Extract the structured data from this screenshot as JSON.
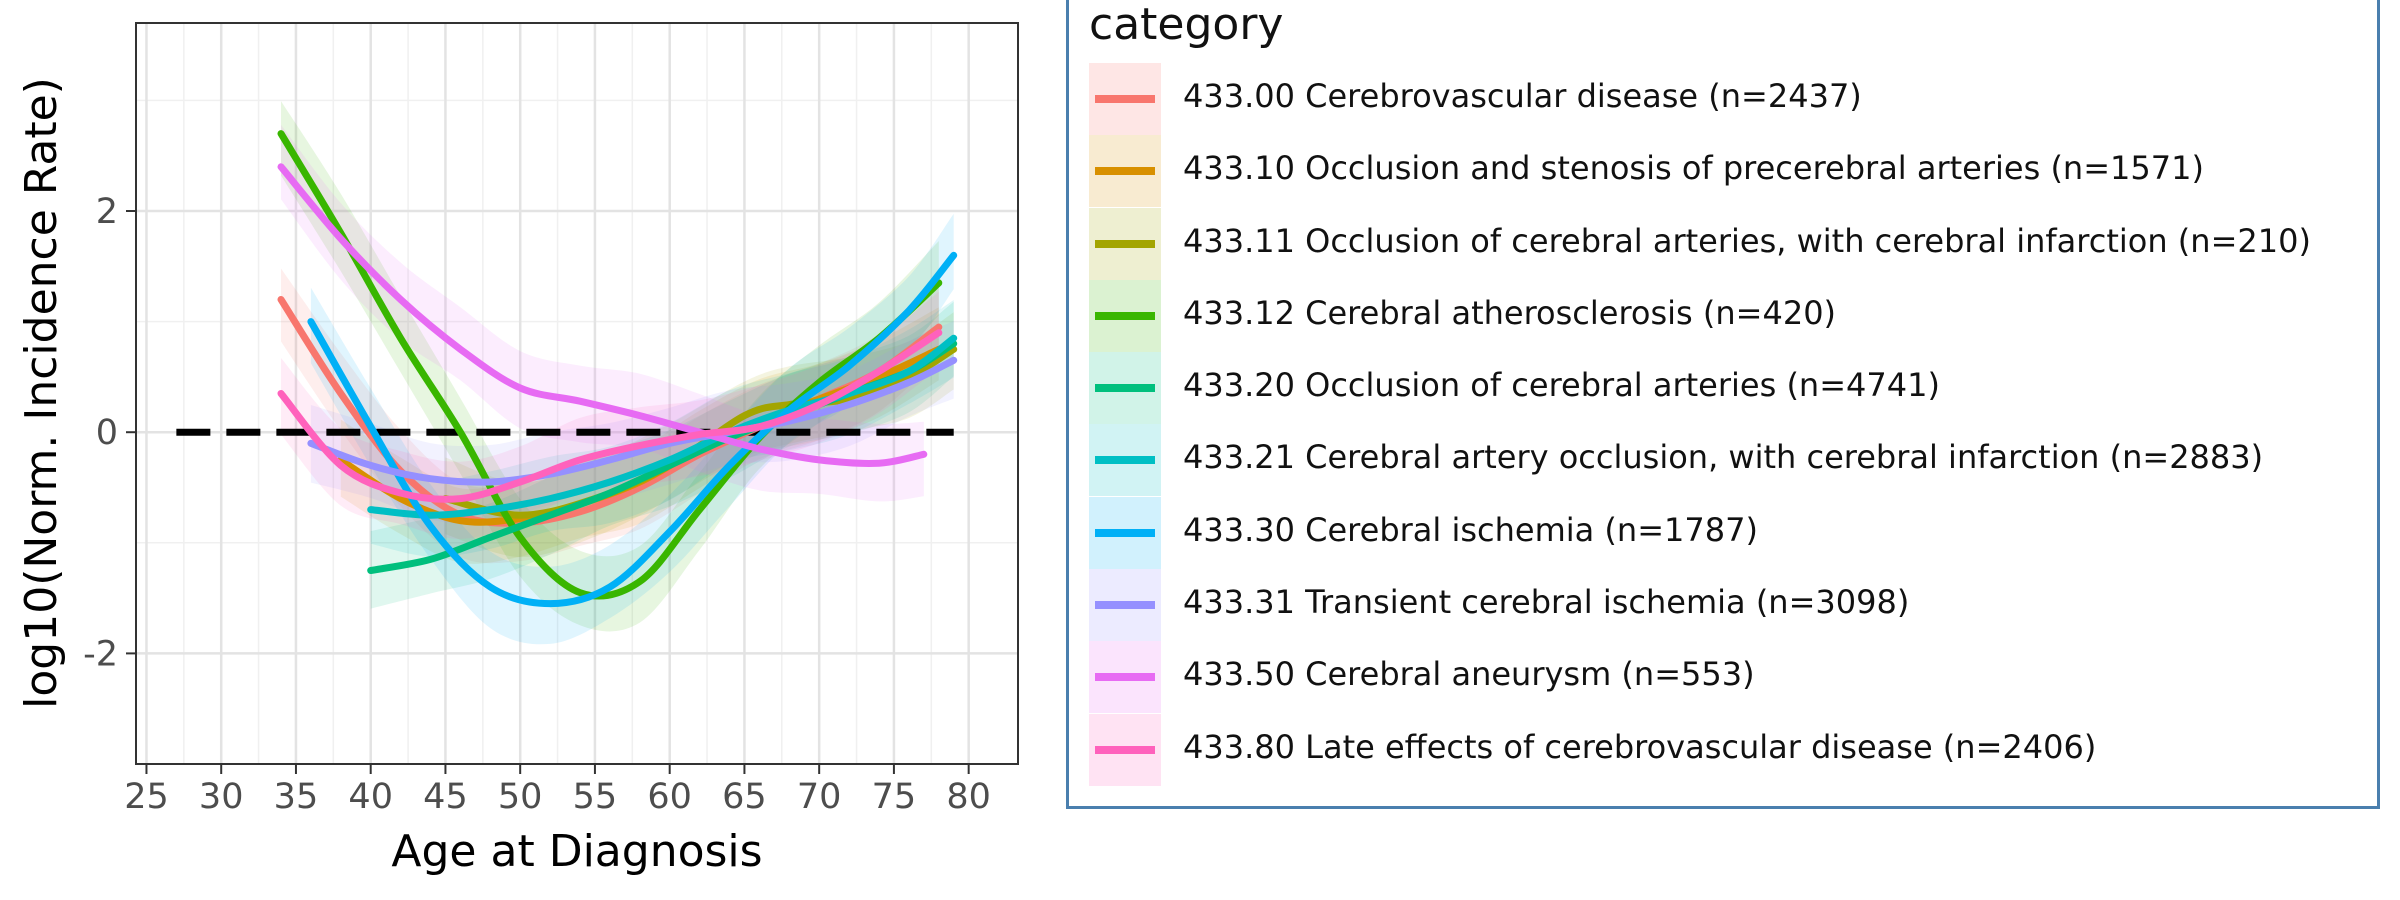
{
  "chart_data": {
    "type": "line",
    "title": "",
    "xlabel": "Age at Diagnosis",
    "ylabel": "log10(Norm. Incidence Rate)",
    "xlim": [
      24.3,
      83.3
    ],
    "ylim": [
      -3.0,
      3.7
    ],
    "xticks": [
      25,
      30,
      35,
      40,
      45,
      50,
      55,
      60,
      65,
      70,
      75,
      80
    ],
    "yticks": [
      -2,
      0,
      2
    ],
    "xtick_labels": [
      "25",
      "30",
      "35",
      "40",
      "45",
      "50",
      "55",
      "60",
      "65",
      "70",
      "75",
      "80"
    ],
    "ytick_labels": [
      "-2",
      "0",
      "2"
    ],
    "grid": true,
    "reference_line": {
      "y": 0,
      "x_range": [
        27,
        79
      ],
      "style": "dashed",
      "color": "#000000"
    },
    "legend": {
      "title": "category",
      "position": "right"
    },
    "series": [
      {
        "name": "433.00 Cerebrovascular disease (n=2437)",
        "color": "#F8766D",
        "x": [
          34,
          38,
          42,
          46,
          50,
          54,
          58,
          62,
          66,
          70,
          74,
          78
        ],
        "y": [
          1.2,
          0.35,
          -0.35,
          -0.75,
          -0.82,
          -0.72,
          -0.5,
          -0.2,
          0.05,
          0.3,
          0.55,
          0.95
        ]
      },
      {
        "name": "433.10 Occlusion and stenosis of precerebral arteries (n=1571)",
        "color": "#D89000",
        "x": [
          38,
          42,
          46,
          50,
          54,
          58,
          62,
          66,
          70,
          74,
          78
        ],
        "y": [
          -0.25,
          -0.6,
          -0.8,
          -0.78,
          -0.65,
          -0.45,
          -0.15,
          0.1,
          0.3,
          0.5,
          0.75
        ]
      },
      {
        "name": "433.11 Occlusion of cerebral arteries, with cerebral infarction (n=210)",
        "color": "#A3A500",
        "x": [
          45,
          50,
          55,
          60,
          65,
          68,
          72,
          76,
          79
        ],
        "y": [
          -0.6,
          -0.75,
          -0.6,
          -0.3,
          0.15,
          0.25,
          0.3,
          0.5,
          0.75
        ]
      },
      {
        "name": "433.12 Cerebral atherosclerosis (n=420)",
        "color": "#39B600",
        "x": [
          34,
          38,
          42,
          46,
          50,
          54,
          58,
          62,
          66,
          70,
          74,
          78
        ],
        "y": [
          2.7,
          1.8,
          0.85,
          0.0,
          -0.95,
          -1.45,
          -1.35,
          -0.7,
          -0.05,
          0.45,
          0.85,
          1.35
        ]
      },
      {
        "name": "433.20 Occlusion of cerebral arteries (n=4741)",
        "color": "#00BF7D",
        "x": [
          40,
          44,
          48,
          52,
          56,
          60,
          64,
          68,
          72,
          76,
          79
        ],
        "y": [
          -1.25,
          -1.15,
          -0.95,
          -0.75,
          -0.55,
          -0.3,
          -0.05,
          0.15,
          0.35,
          0.55,
          0.8
        ]
      },
      {
        "name": "433.21 Cerebral artery occlusion, with cerebral infarction (n=2883)",
        "color": "#00BFC4",
        "x": [
          40,
          44,
          48,
          52,
          56,
          60,
          64,
          68,
          72,
          76,
          79
        ],
        "y": [
          -0.7,
          -0.75,
          -0.7,
          -0.6,
          -0.45,
          -0.25,
          0.0,
          0.2,
          0.35,
          0.55,
          0.85
        ]
      },
      {
        "name": "433.30 Cerebral ischemia (n=1787)",
        "color": "#00B0F6",
        "x": [
          36,
          40,
          44,
          48,
          52,
          56,
          60,
          64,
          68,
          72,
          76,
          79
        ],
        "y": [
          1.0,
          0.05,
          -0.85,
          -1.4,
          -1.55,
          -1.4,
          -0.9,
          -0.3,
          0.2,
          0.6,
          1.1,
          1.6
        ]
      },
      {
        "name": "433.31 Transient cerebral ischemia (n=3098)",
        "color": "#9590FF",
        "x": [
          36,
          40,
          44,
          48,
          52,
          56,
          60,
          64,
          68,
          72,
          76,
          79
        ],
        "y": [
          -0.1,
          -0.3,
          -0.42,
          -0.45,
          -0.38,
          -0.25,
          -0.1,
          0.0,
          0.1,
          0.25,
          0.45,
          0.65
        ]
      },
      {
        "name": "433.50 Cerebral aneurysm (n=553)",
        "color": "#E76BF3",
        "x": [
          34,
          38,
          42,
          46,
          50,
          54,
          58,
          62,
          66,
          70,
          74,
          77
        ],
        "y": [
          2.4,
          1.75,
          1.2,
          0.75,
          0.4,
          0.28,
          0.15,
          0.0,
          -0.15,
          -0.25,
          -0.28,
          -0.2
        ]
      },
      {
        "name": "433.80 Late effects of cerebrovascular disease (n=2406)",
        "color": "#FF62BC",
        "x": [
          34,
          38,
          42,
          46,
          50,
          54,
          58,
          62,
          66,
          70,
          74,
          78
        ],
        "y": [
          0.35,
          -0.3,
          -0.55,
          -0.6,
          -0.45,
          -0.25,
          -0.12,
          -0.02,
          0.05,
          0.25,
          0.55,
          0.9
        ]
      }
    ]
  }
}
